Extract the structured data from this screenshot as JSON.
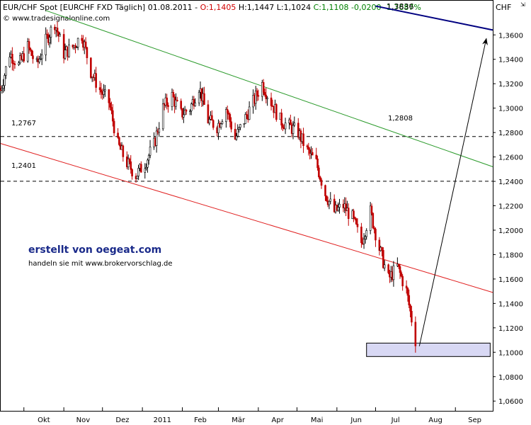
{
  "header": {
    "symbol": "EUR/CHF Spot [EURCHF FXD  Täglich] 01.08.2011 - ",
    "open": "O:1,1405",
    "high": " H:1,1447",
    "low": " L:1,1024",
    "close": " C:1,1108",
    "change": " -0,0200",
    "change_pct": " -1,7687%",
    "extra": "1,3836",
    "copyright": "© www.tradesignalonline.com",
    "currency": "CHF"
  },
  "credits": {
    "line1": "erstellt von oegeat.com",
    "line2": "handeln sie mit www.brokervorschlag.de"
  },
  "colors": {
    "candle_up": "#000000",
    "candle_down": "#c00000",
    "open_red": "#d00000",
    "close_green": "#008000",
    "upper_channel": "#2a9a2a",
    "lower_channel": "#e02020",
    "long_trend": "#000080",
    "target_zone": "#d8d8f4"
  },
  "chart_data": {
    "type": "candlestick",
    "instrument": "EUR/CHF",
    "y_axis": {
      "min": 1.052,
      "max": 1.388,
      "ticks": [
        "1,0600",
        "1,0800",
        "1,1000",
        "1,1200",
        "1,1400",
        "1,1600",
        "1,1800",
        "1,2000",
        "1,2200",
        "1,2400",
        "1,2600",
        "1,2800",
        "1,3000",
        "1,3200",
        "1,3400",
        "1,3600"
      ]
    },
    "x_axis": {
      "labels": [
        "Okt",
        "Nov",
        "Dez",
        "2011",
        "Feb",
        "Mär",
        "Apr",
        "Mai",
        "Jun",
        "Jul",
        "Aug",
        "Sep"
      ],
      "label_dates": [
        "2010-10-01",
        "2010-11-01",
        "2010-12-01",
        "2011-01-01",
        "2011-02-01",
        "2011-03-01",
        "2011-04-01",
        "2011-05-01",
        "2011-06-01",
        "2011-07-01",
        "2011-08-01",
        "2011-09-01"
      ],
      "start": "2010-09-13",
      "end": "2011-09-30"
    },
    "price_path": [
      [
        "2010-09-13",
        1.315
      ],
      [
        "2010-09-20",
        1.345
      ],
      [
        "2010-09-27",
        1.335
      ],
      [
        "2010-10-04",
        1.35
      ],
      [
        "2010-10-11",
        1.335
      ],
      [
        "2010-10-18",
        1.355
      ],
      [
        "2010-10-25",
        1.37
      ],
      [
        "2010-11-01",
        1.345
      ],
      [
        "2010-11-08",
        1.35
      ],
      [
        "2010-11-15",
        1.36
      ],
      [
        "2010-11-22",
        1.33
      ],
      [
        "2010-11-29",
        1.315
      ],
      [
        "2010-12-06",
        1.305
      ],
      [
        "2010-12-13",
        1.27
      ],
      [
        "2010-12-20",
        1.255
      ],
      [
        "2010-12-27",
        1.245
      ],
      [
        "2011-01-03",
        1.255
      ],
      [
        "2011-01-10",
        1.27
      ],
      [
        "2011-01-17",
        1.3
      ],
      [
        "2011-01-24",
        1.31
      ],
      [
        "2011-01-31",
        1.295
      ],
      [
        "2011-02-07",
        1.3
      ],
      [
        "2011-02-14",
        1.318
      ],
      [
        "2011-02-21",
        1.29
      ],
      [
        "2011-02-28",
        1.285
      ],
      [
        "2011-03-07",
        1.3
      ],
      [
        "2011-03-14",
        1.275
      ],
      [
        "2011-03-21",
        1.29
      ],
      [
        "2011-03-28",
        1.305
      ],
      [
        "2011-04-04",
        1.32
      ],
      [
        "2011-04-11",
        1.305
      ],
      [
        "2011-04-18",
        1.29
      ],
      [
        "2011-04-25",
        1.285
      ],
      [
        "2011-05-02",
        1.28
      ],
      [
        "2011-05-09",
        1.265
      ],
      [
        "2011-05-16",
        1.255
      ],
      [
        "2011-05-23",
        1.23
      ],
      [
        "2011-05-30",
        1.215
      ],
      [
        "2011-06-06",
        1.22
      ],
      [
        "2011-06-13",
        1.21
      ],
      [
        "2011-06-20",
        1.19
      ],
      [
        "2011-06-27",
        1.215
      ],
      [
        "2011-07-04",
        1.185
      ],
      [
        "2011-07-11",
        1.16
      ],
      [
        "2011-07-18",
        1.17
      ],
      [
        "2011-07-25",
        1.15
      ],
      [
        "2011-08-01",
        1.11
      ]
    ],
    "series": [
      {
        "type": "horizontal_line",
        "label": "1,2767",
        "value": 1.2767,
        "style": "dashed"
      },
      {
        "type": "horizontal_line",
        "label": "1,2401",
        "value": 1.2401,
        "style": "dashed"
      },
      {
        "type": "trend_line",
        "color": "upper_channel",
        "label": "1,2808",
        "points": [
          [
            "2010-10-18",
            1.38
          ],
          [
            "2011-09-30",
            1.252
          ]
        ]
      },
      {
        "type": "trend_line",
        "color": "lower_channel",
        "points": [
          [
            "2010-09-13",
            1.271
          ],
          [
            "2011-09-30",
            1.149
          ]
        ]
      },
      {
        "type": "trend_line",
        "color": "long_trend",
        "points": [
          [
            "2011-07-01",
            1.3836
          ],
          [
            "2011-09-30",
            1.364
          ]
        ]
      },
      {
        "type": "arrow",
        "points": [
          [
            "2011-08-04",
            1.105
          ],
          [
            "2011-09-25",
            1.357
          ]
        ]
      },
      {
        "type": "zone",
        "x_range": [
          "2011-06-24",
          "2011-09-28"
        ],
        "y_range": [
          1.0965,
          1.1075
        ]
      }
    ],
    "grid": false
  }
}
